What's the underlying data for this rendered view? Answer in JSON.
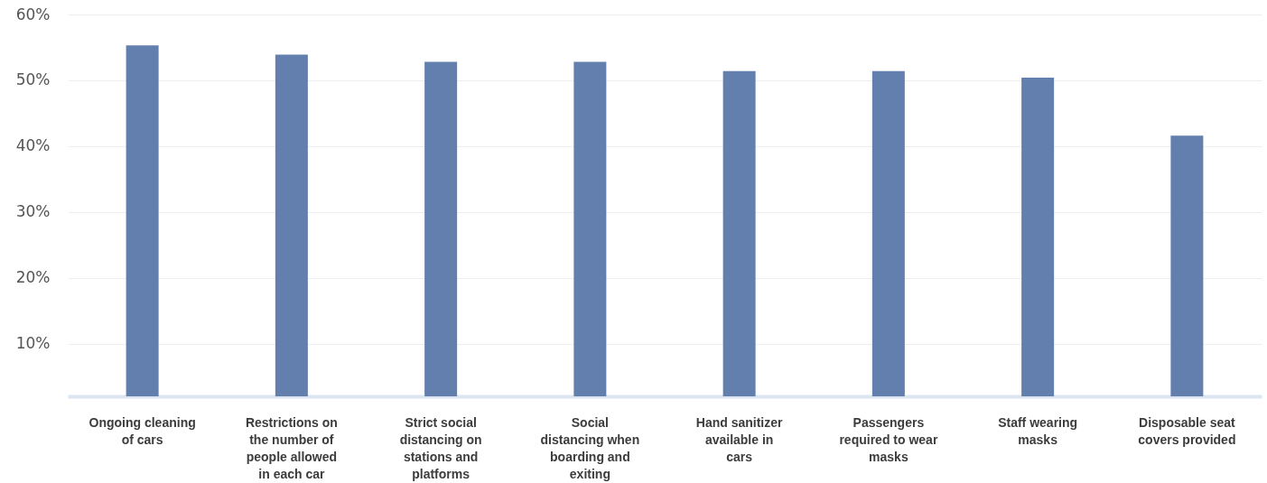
{
  "chart_data": {
    "type": "bar",
    "categories": [
      "Ongoing cleaning of cars",
      "Restrictions on the number of people allowed in each car",
      "Strict social distancing on stations and platforms",
      "Social distancing when boarding and exiting",
      "Hand sanitizer available in cars",
      "Passengers required to wear masks",
      "Staff wearing masks",
      "Disposable seat covers provided"
    ],
    "values": [
      55.3,
      53.9,
      52.8,
      52.8,
      51.4,
      51.4,
      50.4,
      41.6
    ],
    "color": "#637fae",
    "ylim": [
      2,
      60
    ],
    "yticks": [
      {
        "value": 10,
        "label": "10%"
      },
      {
        "value": 20,
        "label": "20%"
      },
      {
        "value": 30,
        "label": "30%"
      },
      {
        "value": 40,
        "label": "40%"
      },
      {
        "value": 50,
        "label": "50%"
      },
      {
        "value": 60,
        "label": "60%"
      }
    ],
    "grid": "y"
  }
}
